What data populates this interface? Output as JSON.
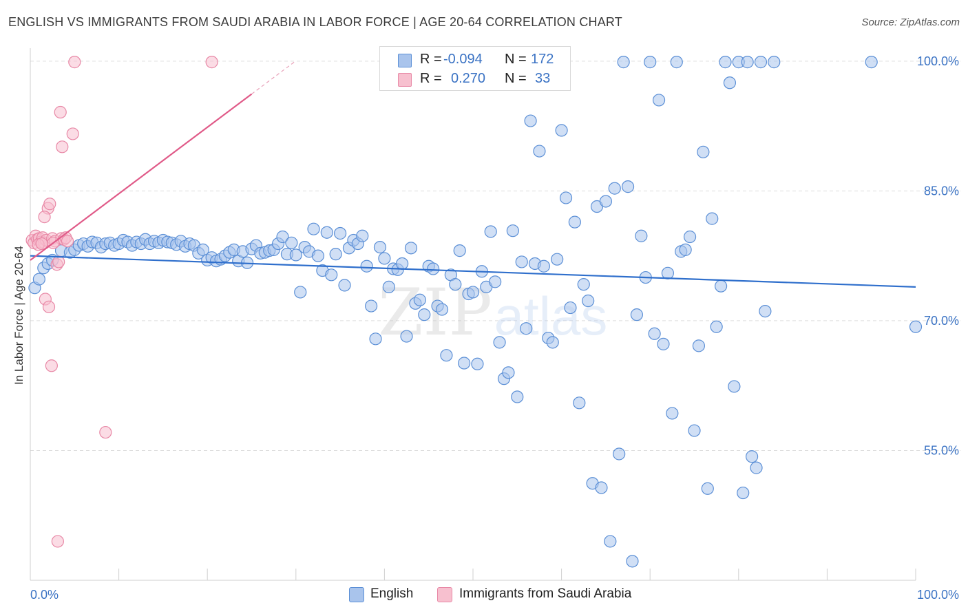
{
  "title": "ENGLISH VS IMMIGRANTS FROM SAUDI ARABIA IN LABOR FORCE | AGE 20-64 CORRELATION CHART",
  "source": "Source: ZipAtlas.com",
  "watermark": {
    "zip": "ZIP",
    "atlas": "atlas"
  },
  "stats": [
    {
      "r_label": "R =",
      "r_value": "-0.094",
      "n_label": "N =",
      "n_value": "172"
    },
    {
      "r_label": "R =",
      "r_value": "0.270",
      "n_label": "N =",
      "n_value": "33"
    }
  ],
  "legend": [
    {
      "label": "English"
    },
    {
      "label": "Immigrants from Saudi Arabia"
    }
  ],
  "colors": {
    "english_fill": "#a9c4ec",
    "english_stroke": "#5b8fd6",
    "english_line": "#2f6fcc",
    "saudi_fill": "#f7c0cf",
    "saudi_stroke": "#e888a6",
    "saudi_line": "#e05a88",
    "tick_label": "#3b73c4",
    "grid": "#dddddd"
  },
  "chart_data": {
    "type": "scatter",
    "title": "ENGLISH VS IMMIGRANTS FROM SAUDI ARABIA IN LABOR FORCE | AGE 20-64 CORRELATION CHART",
    "xlabel": "",
    "ylabel": "In Labor Force | Age 20-64",
    "xlim": [
      0,
      100
    ],
    "ylim": [
      40,
      101.5
    ],
    "x_tick_labels": [
      "0.0%",
      "100.0%"
    ],
    "y_ticks": [
      55,
      70,
      85,
      100
    ],
    "y_tick_labels": [
      "55.0%",
      "70.0%",
      "85.0%",
      "100.0%"
    ],
    "grid": true,
    "series": [
      {
        "name": "English",
        "r": -0.094,
        "n": 172,
        "trend": {
          "x1": 0,
          "y1": 77.5,
          "x2": 100,
          "y2": 73.9
        },
        "points": [
          [
            0.5,
            73.8
          ],
          [
            1.0,
            74.8
          ],
          [
            1.5,
            76.1
          ],
          [
            2.0,
            76.6
          ],
          [
            2.5,
            77.0
          ],
          [
            3.5,
            78.1
          ],
          [
            4.5,
            77.9
          ],
          [
            5.0,
            78.2
          ],
          [
            5.5,
            78.7
          ],
          [
            6.0,
            78.9
          ],
          [
            6.5,
            78.6
          ],
          [
            7.0,
            79.1
          ],
          [
            7.5,
            79.0
          ],
          [
            8.0,
            78.5
          ],
          [
            8.5,
            78.9
          ],
          [
            9.0,
            79.0
          ],
          [
            9.5,
            78.7
          ],
          [
            10.0,
            78.9
          ],
          [
            10.5,
            79.3
          ],
          [
            11.0,
            79.1
          ],
          [
            11.5,
            78.7
          ],
          [
            12.0,
            79.1
          ],
          [
            12.5,
            78.9
          ],
          [
            13.0,
            79.4
          ],
          [
            13.5,
            78.9
          ],
          [
            14.0,
            79.2
          ],
          [
            14.5,
            79.0
          ],
          [
            15.0,
            79.3
          ],
          [
            15.5,
            79.1
          ],
          [
            16.0,
            79.0
          ],
          [
            16.5,
            78.8
          ],
          [
            17.0,
            79.2
          ],
          [
            17.5,
            78.6
          ],
          [
            18.0,
            78.9
          ],
          [
            18.5,
            78.7
          ],
          [
            19.0,
            77.8
          ],
          [
            19.5,
            78.2
          ],
          [
            20.0,
            77.0
          ],
          [
            20.5,
            77.3
          ],
          [
            21.0,
            76.9
          ],
          [
            21.5,
            77.1
          ],
          [
            22.0,
            77.5
          ],
          [
            22.5,
            77.9
          ],
          [
            23.0,
            78.2
          ],
          [
            23.5,
            76.9
          ],
          [
            24.0,
            78.0
          ],
          [
            24.5,
            76.7
          ],
          [
            25.0,
            78.3
          ],
          [
            25.5,
            78.7
          ],
          [
            26.0,
            77.8
          ],
          [
            26.5,
            77.9
          ],
          [
            27.0,
            78.1
          ],
          [
            27.5,
            78.2
          ],
          [
            28.0,
            78.9
          ],
          [
            28.5,
            79.7
          ],
          [
            29.0,
            77.7
          ],
          [
            29.5,
            79.0
          ],
          [
            30.0,
            77.6
          ],
          [
            30.5,
            73.3
          ],
          [
            31.0,
            78.5
          ],
          [
            31.5,
            78.0
          ],
          [
            32.0,
            80.6
          ],
          [
            32.5,
            77.5
          ],
          [
            33.0,
            75.8
          ],
          [
            33.5,
            80.2
          ],
          [
            34.0,
            75.3
          ],
          [
            34.5,
            77.7
          ],
          [
            35.0,
            80.1
          ],
          [
            35.5,
            74.1
          ],
          [
            36.0,
            78.4
          ],
          [
            36.5,
            79.3
          ],
          [
            37.0,
            78.9
          ],
          [
            37.5,
            79.8
          ],
          [
            38.0,
            76.3
          ],
          [
            38.5,
            71.7
          ],
          [
            39.0,
            67.9
          ],
          [
            39.5,
            78.5
          ],
          [
            40.0,
            77.2
          ],
          [
            40.5,
            73.9
          ],
          [
            41.0,
            76.0
          ],
          [
            41.5,
            75.9
          ],
          [
            42.0,
            76.6
          ],
          [
            42.5,
            68.2
          ],
          [
            43.0,
            78.4
          ],
          [
            43.5,
            72.0
          ],
          [
            44.0,
            72.4
          ],
          [
            44.5,
            70.7
          ],
          [
            45.0,
            76.3
          ],
          [
            45.5,
            76.0
          ],
          [
            46.0,
            71.7
          ],
          [
            46.5,
            71.3
          ],
          [
            47.0,
            66.0
          ],
          [
            47.5,
            75.3
          ],
          [
            48.0,
            74.2
          ],
          [
            48.5,
            78.1
          ],
          [
            49.0,
            65.1
          ],
          [
            49.5,
            73.1
          ],
          [
            50.0,
            73.3
          ],
          [
            50.5,
            65.0
          ],
          [
            51.0,
            75.7
          ],
          [
            51.5,
            73.9
          ],
          [
            52.0,
            80.3
          ],
          [
            52.5,
            74.5
          ],
          [
            53.0,
            67.5
          ],
          [
            53.5,
            63.3
          ],
          [
            54.0,
            64.0
          ],
          [
            54.5,
            80.4
          ],
          [
            55.0,
            61.2
          ],
          [
            55.5,
            76.8
          ],
          [
            56.0,
            69.1
          ],
          [
            56.5,
            93.1
          ],
          [
            57.0,
            76.6
          ],
          [
            57.5,
            89.6
          ],
          [
            58.0,
            76.3
          ],
          [
            58.5,
            68.0
          ],
          [
            59.0,
            67.5
          ],
          [
            59.5,
            77.1
          ],
          [
            60.0,
            92.0
          ],
          [
            60.5,
            84.2
          ],
          [
            61.0,
            71.5
          ],
          [
            61.5,
            81.4
          ],
          [
            62.0,
            60.5
          ],
          [
            62.5,
            74.2
          ],
          [
            63.0,
            72.3
          ],
          [
            63.5,
            51.2
          ],
          [
            64.0,
            83.2
          ],
          [
            64.5,
            50.7
          ],
          [
            65.0,
            83.8
          ],
          [
            65.5,
            44.5
          ],
          [
            66.0,
            85.3
          ],
          [
            66.5,
            54.6
          ],
          [
            67.0,
            99.9
          ],
          [
            67.5,
            85.5
          ],
          [
            68.0,
            42.2
          ],
          [
            68.5,
            70.7
          ],
          [
            69.0,
            79.8
          ],
          [
            69.5,
            75.0
          ],
          [
            70.0,
            99.9
          ],
          [
            70.5,
            68.5
          ],
          [
            71.0,
            95.5
          ],
          [
            71.5,
            67.3
          ],
          [
            72.0,
            75.5
          ],
          [
            72.5,
            59.3
          ],
          [
            73.0,
            99.9
          ],
          [
            73.5,
            78.0
          ],
          [
            74.0,
            78.2
          ],
          [
            74.5,
            79.7
          ],
          [
            75.0,
            57.3
          ],
          [
            75.5,
            67.1
          ],
          [
            76.0,
            89.5
          ],
          [
            76.5,
            50.6
          ],
          [
            77.0,
            81.8
          ],
          [
            77.5,
            69.3
          ],
          [
            78.0,
            74.0
          ],
          [
            78.5,
            99.9
          ],
          [
            79.0,
            97.5
          ],
          [
            79.5,
            62.4
          ],
          [
            80.0,
            99.9
          ],
          [
            80.5,
            50.1
          ],
          [
            81.0,
            99.9
          ],
          [
            81.5,
            54.3
          ],
          [
            82.0,
            53.0
          ],
          [
            82.5,
            99.9
          ],
          [
            83.0,
            71.1
          ],
          [
            84.0,
            99.9
          ],
          [
            100.0,
            69.3
          ],
          [
            95.0,
            99.9
          ]
        ]
      },
      {
        "name": "Immigrants from Saudi Arabia",
        "r": 0.27,
        "n": 33,
        "trend": {
          "x1": 0,
          "y1": 77.0,
          "x2": 25,
          "y2": 96.2
        },
        "points": [
          [
            0.2,
            79.3
          ],
          [
            0.4,
            79.0
          ],
          [
            0.6,
            79.8
          ],
          [
            0.8,
            79.4
          ],
          [
            1.0,
            79.5
          ],
          [
            1.2,
            79.1
          ],
          [
            1.4,
            79.6
          ],
          [
            1.6,
            79.0
          ],
          [
            1.8,
            79.3
          ],
          [
            2.0,
            83.0
          ],
          [
            2.2,
            83.5
          ],
          [
            2.5,
            79.5
          ],
          [
            2.8,
            79.2
          ],
          [
            3.0,
            76.5
          ],
          [
            3.2,
            76.8
          ],
          [
            3.5,
            79.5
          ],
          [
            3.8,
            79.4
          ],
          [
            4.0,
            79.6
          ],
          [
            4.2,
            79.2
          ],
          [
            1.6,
            82.0
          ],
          [
            1.7,
            72.5
          ],
          [
            2.1,
            71.6
          ],
          [
            2.4,
            64.8
          ],
          [
            3.4,
            94.1
          ],
          [
            3.6,
            90.1
          ],
          [
            4.8,
            91.6
          ],
          [
            5.0,
            99.9
          ],
          [
            20.5,
            99.9
          ],
          [
            8.5,
            57.1
          ],
          [
            3.1,
            44.5
          ],
          [
            0.9,
            78.8
          ],
          [
            1.3,
            78.9
          ],
          [
            2.6,
            79.0
          ]
        ]
      }
    ]
  }
}
